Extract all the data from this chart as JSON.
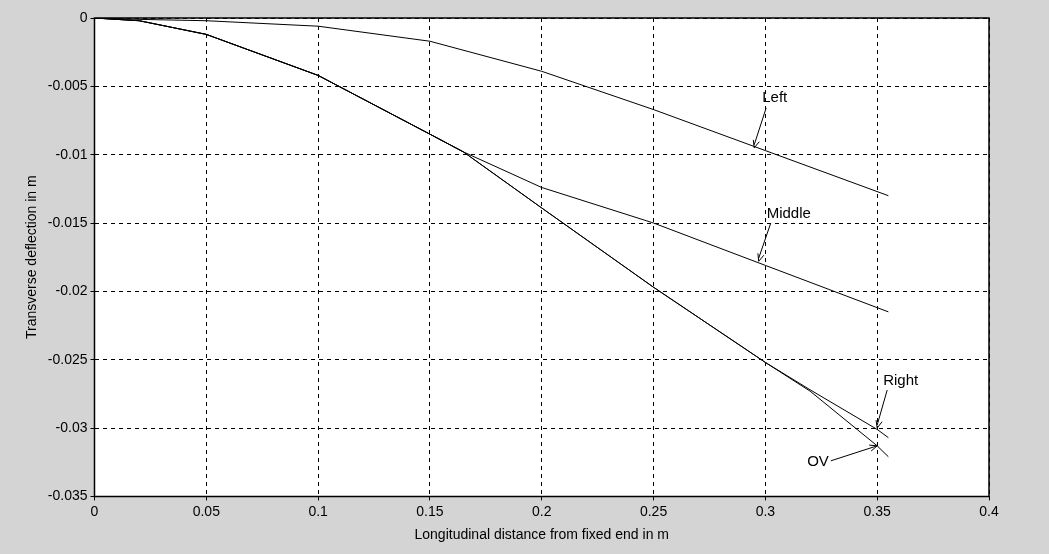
{
  "chart_data": {
    "type": "line",
    "xlabel": "Longitudinal distance from fixed end in m",
    "ylabel": "Transverse deflection in m",
    "xlim": [
      0,
      0.4
    ],
    "xticks": [
      0,
      0.05,
      0.1,
      0.15,
      0.2,
      0.25,
      0.3,
      0.35,
      0.4
    ],
    "ylim": [
      -0.035,
      0
    ],
    "yticks": [
      0,
      -0.005,
      -0.01,
      -0.015,
      -0.02,
      -0.025,
      -0.03,
      -0.035
    ],
    "grid": true,
    "legend": false,
    "marker": "none",
    "line_style": "solid",
    "series": [
      {
        "color": "#000000",
        "x": [
          0,
          0.02,
          0.05,
          0.1,
          0.15,
          0.2,
          0.25,
          0.3,
          0.355
        ],
        "values": [
          0,
          -0.0001,
          -0.0002,
          -0.0006,
          -0.0017,
          -0.0039,
          -0.0067,
          -0.0097,
          -0.013
        ]
      },
      {
        "color": "#000000",
        "x": [
          0,
          0.02,
          0.05,
          0.1,
          0.15,
          0.165,
          0.2,
          0.25,
          0.3,
          0.355
        ],
        "values": [
          0,
          -0.0002,
          -0.0012,
          -0.0042,
          -0.0085,
          -0.0098,
          -0.0124,
          -0.015,
          -0.0181,
          -0.0215
        ]
      },
      {
        "color": "#000000",
        "x": [
          0,
          0.02,
          0.05,
          0.1,
          0.15,
          0.165,
          0.2,
          0.25,
          0.3,
          0.32,
          0.35,
          0.355
        ],
        "values": [
          0,
          -0.0002,
          -0.0012,
          -0.0042,
          -0.0085,
          -0.0098,
          -0.0139,
          -0.0197,
          -0.0252,
          -0.0272,
          -0.0301,
          -0.0307
        ]
      },
      {
        "color": "#000000",
        "x": [
          0,
          0.02,
          0.05,
          0.1,
          0.15,
          0.165,
          0.2,
          0.25,
          0.3,
          0.32,
          0.35,
          0.355
        ],
        "values": [
          0,
          -0.0002,
          -0.0012,
          -0.0042,
          -0.0085,
          -0.0098,
          -0.0139,
          -0.0197,
          -0.0252,
          -0.0273,
          -0.0313,
          -0.0321
        ]
      }
    ],
    "annotations": [
      {
        "text": "Left",
        "x": 0.295,
        "y": -0.0095
      },
      {
        "text": "Middle",
        "x": 0.297,
        "y": -0.0178
      },
      {
        "text": "Right",
        "x": 0.35,
        "y": -0.03
      },
      {
        "text": "OV",
        "x": 0.35,
        "y": -0.0313
      }
    ]
  }
}
